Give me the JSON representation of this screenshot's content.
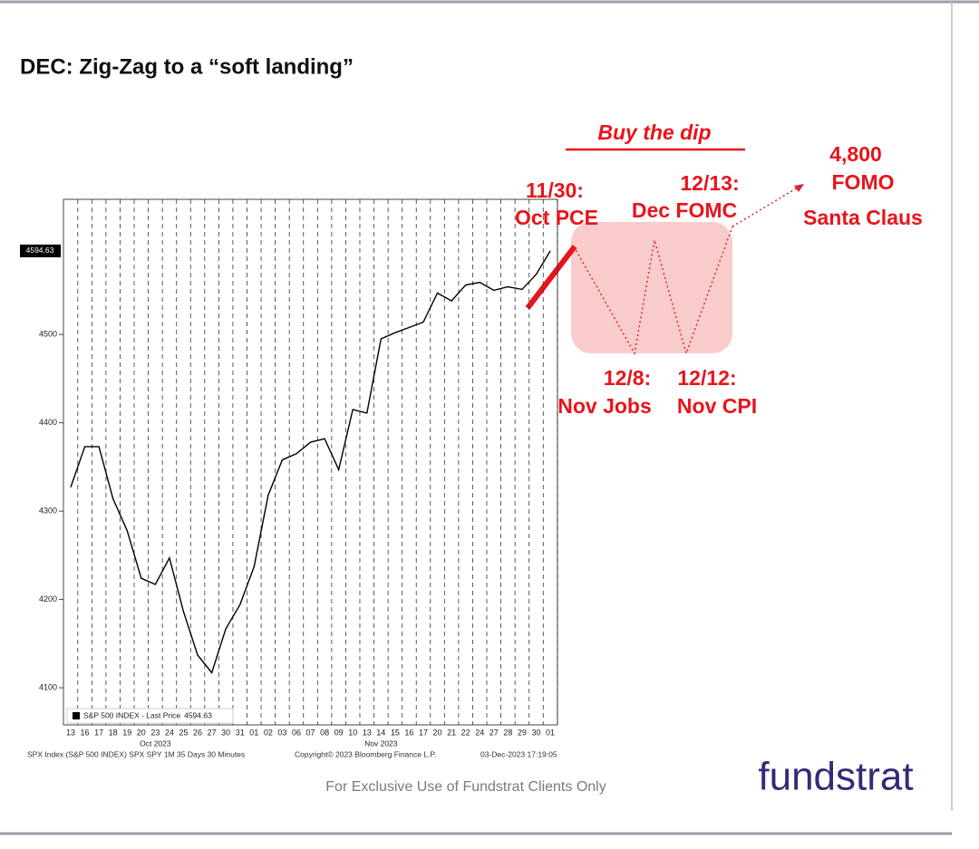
{
  "slide_title": "DEC: Zig-Zag to a “soft landing”",
  "footer": "For Exclusive Use of Fundstrat Clients Only",
  "logo": "fundstrat",
  "chart_data": {
    "type": "line",
    "categories": [
      "13",
      "16",
      "17",
      "18",
      "19",
      "20",
      "23",
      "24",
      "25",
      "26",
      "27",
      "30",
      "31",
      "01",
      "02",
      "03",
      "06",
      "07",
      "08",
      "09",
      "10",
      "13",
      "14",
      "15",
      "16",
      "17",
      "20",
      "21",
      "22",
      "24",
      "27",
      "28",
      "29",
      "30",
      "01"
    ],
    "month_labels": [
      "Oct 2023",
      "Nov 2023"
    ],
    "series": [
      {
        "name": "S&P 500 INDEX  - Last Price",
        "color": "#000000",
        "values": [
          4327,
          4373,
          4373,
          4314,
          4278,
          4224,
          4217,
          4247,
          4186,
          4137,
          4117,
          4167,
          4194,
          4237,
          4318,
          4358,
          4365,
          4378,
          4382,
          4347,
          4415,
          4411,
          4495,
          4502,
          4508,
          4514,
          4547,
          4538,
          4556,
          4559,
          4550,
          4554,
          4551,
          4568,
          4594.63
        ]
      }
    ],
    "ylim": [
      4058,
      4653
    ],
    "yticks": [
      4100,
      4200,
      4300,
      4400,
      4500
    ],
    "grid": true,
    "source_notes": [
      "SPX Index (S&P 500 INDEX) SPX SPY 1M 35 Days 30 Minutes",
      "Copyright© 2023 Bloomberg Finance L.P.",
      "03-Dec-2023 17:19:05"
    ],
    "annotations": [
      "Buy the dip",
      "11/30:",
      "Oct PCE",
      "12/13:",
      "Dec FOMC",
      "4,800",
      "FOMO",
      "Santa Claus",
      "12/8:",
      "Nov Jobs",
      "12/12:",
      "Nov CPI"
    ]
  }
}
